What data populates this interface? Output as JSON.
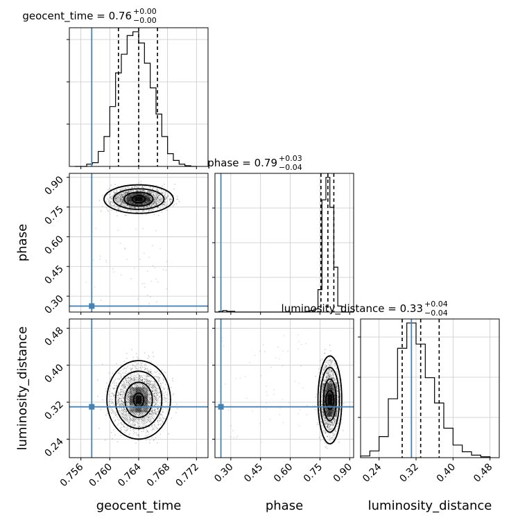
{
  "chart_data": {
    "type": "corner",
    "parameters": [
      "geocent_time",
      "phase",
      "luminosity_distance"
    ],
    "truths": {
      "geocent_time": 0.7575,
      "phase": 0.25,
      "luminosity_distance": 0.31
    },
    "colors": {
      "truth": "#4682b4",
      "hist": "#000000",
      "grid": "#c8c8c8"
    },
    "titles": [
      {
        "param": "geocent_time",
        "text": "geocent_time = 0.76",
        "sup": "+0.00",
        "sub": "−0.00"
      },
      {
        "param": "phase",
        "text": "phase = 0.79",
        "sup": "+0.03",
        "sub": "−0.04"
      },
      {
        "param": "luminosity_distance",
        "text": "luminosity_distance = 0.33",
        "sup": "+0.04",
        "sub": "−0.04"
      }
    ],
    "axes": {
      "geocent_time": {
        "lim": [
          0.7544,
          0.7736
        ],
        "ticks": [
          "0.756",
          "0.760",
          "0.764",
          "0.768",
          "0.772"
        ],
        "tick_values": [
          0.756,
          0.76,
          0.764,
          0.768,
          0.772
        ]
      },
      "phase": {
        "lim": [
          0.22,
          0.92
        ],
        "ticks": [
          "0.30",
          "0.45",
          "0.60",
          "0.75",
          "0.90"
        ],
        "tick_values": [
          0.3,
          0.45,
          0.6,
          0.75,
          0.9
        ]
      },
      "luminosity_distance": {
        "lim": [
          0.2,
          0.5
        ],
        "ticks": [
          "0.24",
          "0.32",
          "0.40",
          "0.48"
        ],
        "tick_values": [
          0.24,
          0.32,
          0.4,
          0.48
        ]
      }
    },
    "quantiles": {
      "geocent_time": [
        0.7612,
        0.764,
        0.7666
      ],
      "phase": [
        0.755,
        0.79,
        0.82
      ],
      "luminosity_distance": [
        0.29,
        0.33,
        0.37
      ]
    },
    "hist_geocent_time": {
      "edges": [
        0.7552,
        0.756,
        0.7568,
        0.7576,
        0.7584,
        0.7592,
        0.76,
        0.7608,
        0.7616,
        0.7624,
        0.7632,
        0.764,
        0.7648,
        0.7656,
        0.7664,
        0.7672,
        0.768,
        0.7688,
        0.7696,
        0.7704,
        0.7712,
        0.772
      ],
      "counts": [
        0,
        0,
        3,
        5,
        20,
        40,
        80,
        125,
        150,
        175,
        180,
        165,
        138,
        105,
        70,
        40,
        17,
        8,
        3,
        1,
        0
      ]
    },
    "hist_phase": {
      "edges": [
        0.22,
        0.24,
        0.26,
        0.28,
        0.3,
        0.32,
        0.34,
        0.36,
        0.38,
        0.4,
        0.42,
        0.44,
        0.46,
        0.48,
        0.5,
        0.52,
        0.54,
        0.56,
        0.58,
        0.6,
        0.62,
        0.64,
        0.66,
        0.68,
        0.7,
        0.72,
        0.74,
        0.76,
        0.78,
        0.8,
        0.82,
        0.84,
        0.86,
        0.88,
        0.9,
        0.92
      ],
      "counts": [
        0,
        1,
        2,
        1,
        1,
        0,
        0,
        0,
        0,
        0,
        0,
        0,
        0,
        0,
        0,
        0,
        0,
        0,
        0,
        0,
        0,
        0,
        0,
        1,
        2,
        4,
        30,
        150,
        180,
        140,
        60,
        8,
        0,
        0,
        0
      ]
    },
    "hist_luminosity_distance": {
      "edges": [
        0.2,
        0.22,
        0.24,
        0.26,
        0.28,
        0.3,
        0.32,
        0.34,
        0.36,
        0.38,
        0.4,
        0.42,
        0.44,
        0.46,
        0.48
      ],
      "counts": [
        2,
        8,
        25,
        70,
        130,
        160,
        135,
        95,
        65,
        35,
        15,
        7,
        3,
        1
      ]
    },
    "scatter_geocent_phase": {
      "center": [
        0.764,
        0.79
      ],
      "contours": [
        {
          "rx": 0.0009,
          "ry": 0.018
        },
        {
          "rx": 0.002,
          "ry": 0.035
        },
        {
          "rx": 0.0035,
          "ry": 0.052
        },
        {
          "rx": 0.0048,
          "ry": 0.072
        }
      ]
    },
    "scatter_geocent_lumdist": {
      "center": [
        0.764,
        0.325
      ],
      "contours": [
        {
          "rx": 0.0007,
          "ry": 0.015
        },
        {
          "rx": 0.0019,
          "ry": 0.038
        },
        {
          "rx": 0.0032,
          "ry": 0.062
        },
        {
          "rx": 0.0044,
          "ry": 0.085
        }
      ]
    },
    "scatter_phase_lumdist": {
      "center": [
        0.8,
        0.325
      ],
      "contours": [
        {
          "rx": 0.02,
          "ry": 0.02
        },
        {
          "rx": 0.032,
          "ry": 0.045
        },
        {
          "rx": 0.048,
          "ry": 0.07
        },
        {
          "rx": 0.06,
          "ry": 0.095
        }
      ]
    }
  }
}
